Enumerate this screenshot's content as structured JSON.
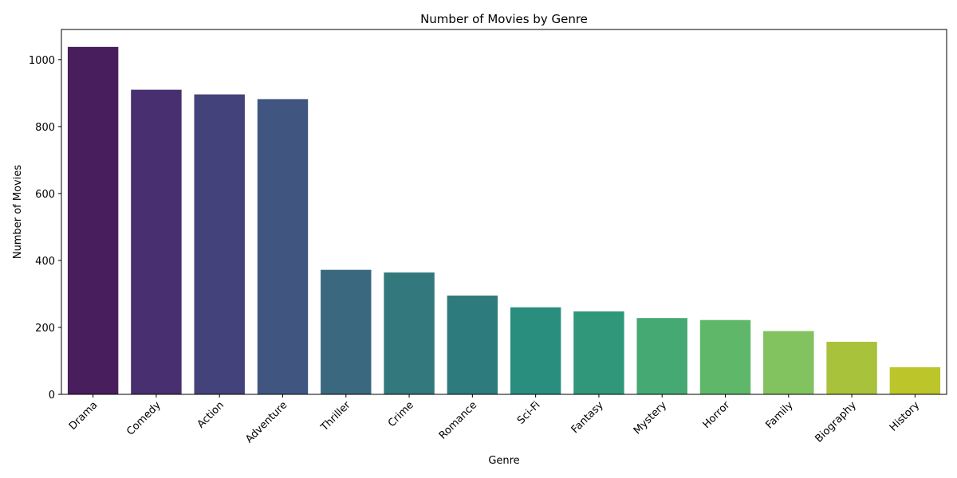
{
  "chart_data": {
    "type": "bar",
    "title": "Number of Movies by Genre",
    "xlabel": "Genre",
    "ylabel": "Number of Movies",
    "categories": [
      "Drama",
      "Comedy",
      "Action",
      "Adventure",
      "Thriller",
      "Crime",
      "Romance",
      "Sci-Fi",
      "Fantasy",
      "Mystery",
      "Horror",
      "Family",
      "Biography",
      "History"
    ],
    "values": [
      1038,
      910,
      896,
      882,
      372,
      364,
      295,
      260,
      248,
      228,
      222,
      189,
      157,
      81
    ],
    "ylim": [
      0,
      1090
    ],
    "yticks": [
      0,
      200,
      400,
      600,
      800,
      1000
    ],
    "colors": [
      "#481f5c",
      "#482f70",
      "#44427a",
      "#405681",
      "#3a687f",
      "#32787d",
      "#2e7b7d",
      "#2a8e7f",
      "#31977a",
      "#45a973",
      "#5fb86a",
      "#82c25f",
      "#a8c23b",
      "#bcc62b"
    ],
    "grid": false,
    "legend": "none"
  }
}
